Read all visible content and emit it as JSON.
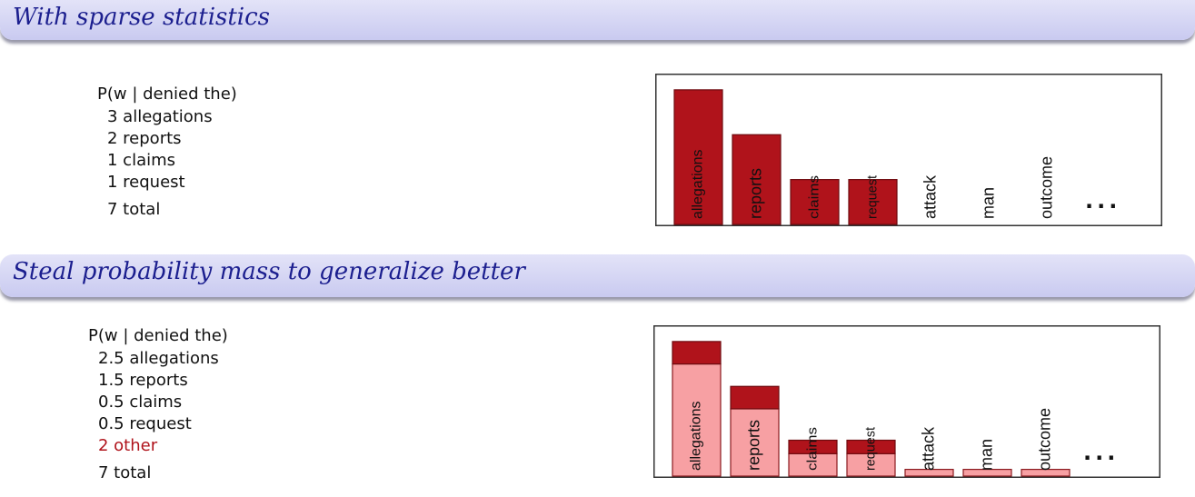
{
  "slide1": {
    "title": "With sparse statistics",
    "header": "P(w | denied the)",
    "rows": [
      {
        "text": "3 allegations"
      },
      {
        "text": "2 reports"
      },
      {
        "text": "1 claims"
      },
      {
        "text": "1 request"
      }
    ],
    "total": "7 total"
  },
  "slide2": {
    "title": "Steal probability mass to generalize better",
    "header": "P(w | denied the)",
    "rows": [
      {
        "text": "2.5 allegations"
      },
      {
        "text": "1.5 reports"
      },
      {
        "text": "0.5 claims"
      },
      {
        "text": "0.5 request"
      }
    ],
    "other": "2 other",
    "total": "7 total"
  },
  "colors": {
    "dark_bar": "#b0131b",
    "light_bar": "#f7a0a3",
    "title_text": "#1c1f8f"
  },
  "chart_data": [
    {
      "type": "bar",
      "categories": [
        "allegations",
        "reports",
        "claims",
        "request",
        "attack",
        "man",
        "outcome"
      ],
      "values": [
        3,
        2,
        1,
        1,
        0,
        0,
        0
      ],
      "ellipsis": "...",
      "ylim": [
        0,
        3.2
      ]
    },
    {
      "type": "bar",
      "categories": [
        "allegations",
        "reports",
        "claims",
        "request",
        "attack",
        "man",
        "outcome"
      ],
      "series": [
        {
          "values": [
            2.5,
            1.5,
            0.5,
            0.5,
            0.15,
            0.15,
            0.15
          ]
        },
        {
          "values": [
            0.5,
            0.5,
            0.3,
            0.3,
            0,
            0,
            0
          ]
        }
      ],
      "ellipsis": "...",
      "ylim": [
        0,
        3.2
      ]
    }
  ]
}
